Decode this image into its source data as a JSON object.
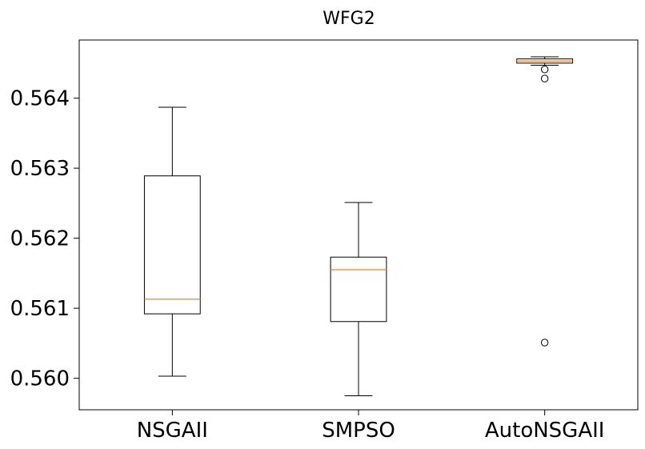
{
  "chart_data": {
    "type": "box",
    "title": "WFG2",
    "xlabel": "",
    "ylabel": "",
    "categories": [
      "NSGAII",
      "SMPSO",
      "AutoNSGAII"
    ],
    "ylim": [
      0.55955,
      0.56483
    ],
    "yticks": [
      0.56,
      0.561,
      0.562,
      0.563,
      0.564
    ],
    "ytick_labels": [
      "0.560",
      "0.561",
      "0.562",
      "0.563",
      "0.564"
    ],
    "grid": false,
    "boxes": [
      {
        "name": "NSGAII",
        "whisker_low": 0.56003,
        "q1": 0.56092,
        "median": 0.56113,
        "q3": 0.56289,
        "whisker_high": 0.56387,
        "outliers": []
      },
      {
        "name": "SMPSO",
        "whisker_low": 0.55975,
        "q1": 0.56081,
        "median": 0.56155,
        "q3": 0.56173,
        "whisker_high": 0.56251,
        "outliers": []
      },
      {
        "name": "AutoNSGAII",
        "whisker_low": 0.56447,
        "q1": 0.5645,
        "median": 0.56453,
        "q3": 0.56456,
        "whisker_high": 0.56459,
        "outliers": [
          0.56441,
          0.56428,
          0.56051
        ]
      }
    ],
    "colors": {
      "box": "#000000",
      "median": "#ff7f0e",
      "background": "#ffffff"
    }
  }
}
